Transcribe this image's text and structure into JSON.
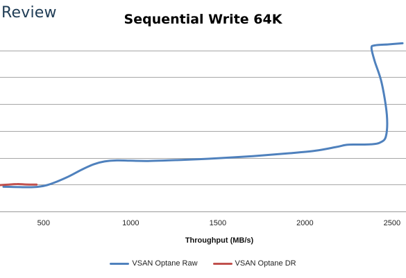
{
  "brand": "Review",
  "chart_data": {
    "type": "line",
    "title": "Sequential Write 64K",
    "xlabel": "Throughput (MB/s)",
    "ylabel": "",
    "xlim": [
      250,
      2580
    ],
    "ylim": [
      0,
      3.2
    ],
    "xticks": [
      500,
      1000,
      1500,
      2000,
      2500
    ],
    "yticks": [
      0.5,
      1.0,
      1.5,
      2.0,
      2.5,
      3.0
    ],
    "grid": true,
    "legend": "bottom",
    "series": [
      {
        "name": "VSAN Optane Raw",
        "color": "#4f81bd",
        "points": [
          [
            270,
            0.46
          ],
          [
            330,
            0.455
          ],
          [
            380,
            0.452
          ],
          [
            430,
            0.452
          ],
          [
            470,
            0.46
          ],
          [
            520,
            0.49
          ],
          [
            580,
            0.56
          ],
          [
            650,
            0.66
          ],
          [
            720,
            0.78
          ],
          [
            790,
            0.88
          ],
          [
            850,
            0.93
          ],
          [
            920,
            0.95
          ],
          [
            1000,
            0.945
          ],
          [
            1100,
            0.94
          ],
          [
            1300,
            0.96
          ],
          [
            1500,
            0.99
          ],
          [
            1700,
            1.03
          ],
          [
            1900,
            1.08
          ],
          [
            2060,
            1.13
          ],
          [
            2180,
            1.2
          ],
          [
            2240,
            1.24
          ],
          [
            2300,
            1.245
          ],
          [
            2380,
            1.25
          ],
          [
            2430,
            1.28
          ],
          [
            2465,
            1.4
          ],
          [
            2470,
            1.8
          ],
          [
            2440,
            2.4
          ],
          [
            2400,
            2.8
          ],
          [
            2382,
            3.04
          ],
          [
            2400,
            3.09
          ],
          [
            2480,
            3.11
          ],
          [
            2560,
            3.13
          ]
        ]
      },
      {
        "name": "VSAN Optane DR",
        "color": "#c0504d",
        "points": [
          [
            250,
            0.49
          ],
          [
            300,
            0.5
          ],
          [
            350,
            0.51
          ],
          [
            400,
            0.502
          ],
          [
            460,
            0.5
          ]
        ]
      }
    ]
  }
}
